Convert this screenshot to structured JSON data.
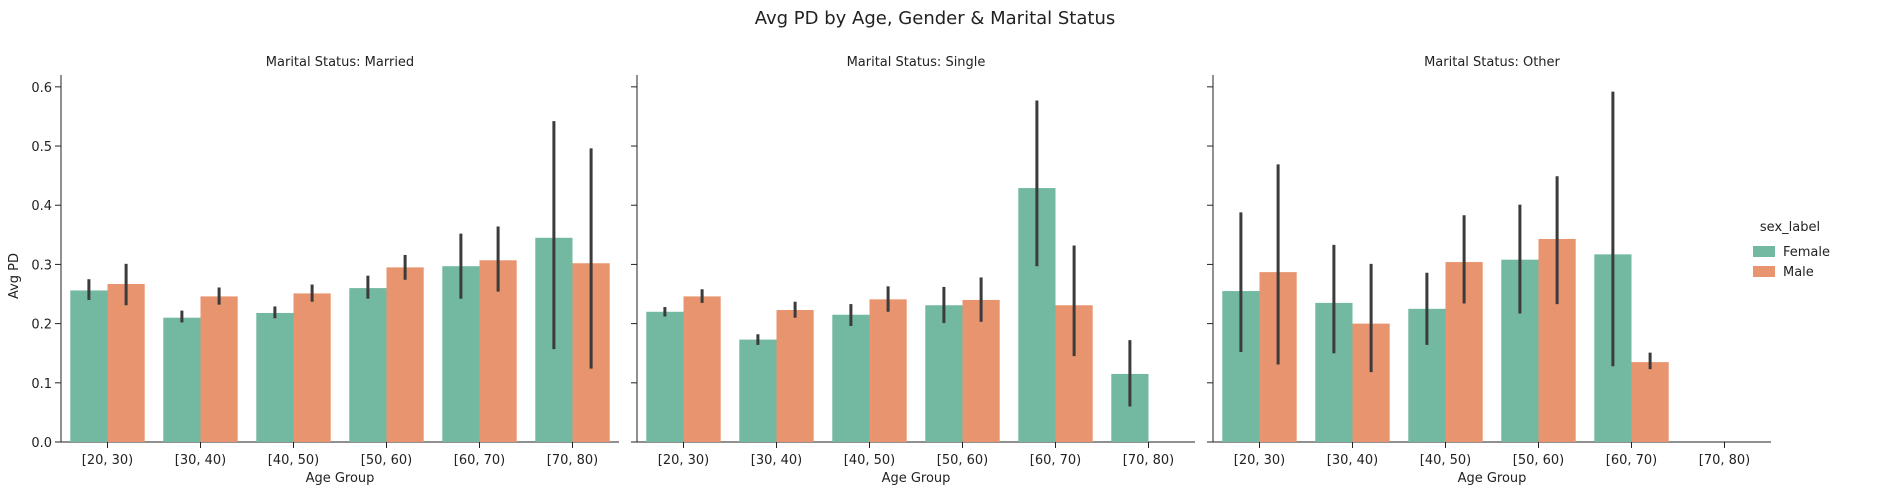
{
  "chart_data": {
    "type": "bar",
    "title": "Avg PD by Age, Gender & Marital Status",
    "categories": [
      "[20, 30)",
      "[30, 40)",
      "[40, 50)",
      "[50, 60)",
      "[60, 70)",
      "[70, 80)"
    ],
    "xlabel": "Age Group",
    "ylabel": "Avg PD",
    "ylim": [
      0,
      0.62
    ],
    "yticks": [
      "0.0",
      "0.1",
      "0.2",
      "0.3",
      "0.4",
      "0.5",
      "0.6"
    ],
    "grid": false,
    "legend": {
      "title": "sex_label",
      "placement": "right",
      "entries": [
        {
          "name": "Female",
          "color": "#73b8a1"
        },
        {
          "name": "Male",
          "color": "#e8956f"
        }
      ]
    },
    "panels": [
      {
        "title": "Marital Status: Married",
        "series": [
          {
            "name": "Female",
            "color": "#73b8a1",
            "values": [
              0.256,
              0.21,
              0.218,
              0.26,
              0.297,
              0.345
            ],
            "ci_low": [
              0.24,
              0.202,
              0.209,
              0.242,
              0.242,
              0.157
            ],
            "ci_high": [
              0.275,
              0.222,
              0.229,
              0.281,
              0.352,
              0.542
            ]
          },
          {
            "name": "Male",
            "color": "#e8956f",
            "values": [
              0.267,
              0.246,
              0.251,
              0.295,
              0.307,
              0.302
            ],
            "ci_low": [
              0.231,
              0.232,
              0.237,
              0.274,
              0.254,
              0.124
            ],
            "ci_high": [
              0.301,
              0.261,
              0.266,
              0.316,
              0.364,
              0.496
            ]
          }
        ]
      },
      {
        "title": "Marital Status: Single",
        "series": [
          {
            "name": "Female",
            "color": "#73b8a1",
            "values": [
              0.22,
              0.173,
              0.215,
              0.231,
              0.429,
              0.115
            ],
            "ci_low": [
              0.212,
              0.164,
              0.196,
              0.201,
              0.297,
              0.06
            ],
            "ci_high": [
              0.228,
              0.182,
              0.233,
              0.262,
              0.577,
              0.172
            ]
          },
          {
            "name": "Male",
            "color": "#e8956f",
            "values": [
              0.246,
              0.223,
              0.241,
              0.24,
              0.231,
              null
            ],
            "ci_low": [
              0.235,
              0.21,
              0.22,
              0.203,
              0.145,
              null
            ],
            "ci_high": [
              0.258,
              0.237,
              0.263,
              0.278,
              0.332,
              null
            ]
          }
        ]
      },
      {
        "title": "Marital Status: Other",
        "series": [
          {
            "name": "Female",
            "color": "#73b8a1",
            "values": [
              0.255,
              0.235,
              0.225,
              0.308,
              0.317,
              null
            ],
            "ci_low": [
              0.152,
              0.15,
              0.164,
              0.217,
              0.128,
              null
            ],
            "ci_high": [
              0.388,
              0.333,
              0.286,
              0.401,
              0.592,
              null
            ]
          },
          {
            "name": "Male",
            "color": "#e8956f",
            "values": [
              0.287,
              0.2,
              0.304,
              0.343,
              0.135,
              null
            ],
            "ci_low": [
              0.131,
              0.118,
              0.234,
              0.233,
              0.123,
              null
            ],
            "ci_high": [
              0.469,
              0.301,
              0.383,
              0.449,
              0.151,
              null
            ]
          }
        ]
      }
    ]
  }
}
